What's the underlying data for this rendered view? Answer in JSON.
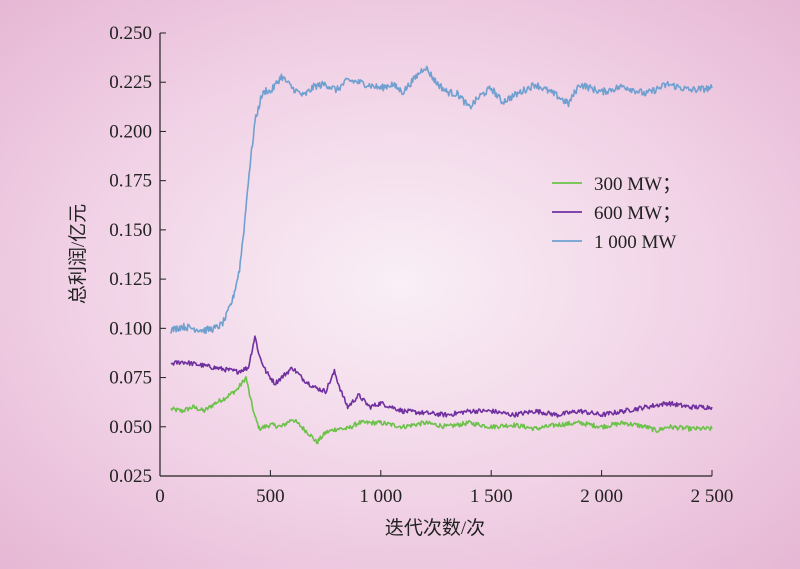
{
  "chart_data": {
    "type": "line",
    "title": "",
    "xlabel": "迭代次数/次",
    "ylabel": "总利润/亿元",
    "xlim": [
      0,
      2500
    ],
    "ylim": [
      0.025,
      0.25
    ],
    "xticks": [
      0,
      500,
      1000,
      1500,
      2000,
      2500
    ],
    "xtick_labels": [
      "0",
      "500",
      "1 000",
      "1 500",
      "2 000",
      "2 500"
    ],
    "yticks": [
      0.025,
      0.05,
      0.075,
      0.1,
      0.125,
      0.15,
      0.175,
      0.2,
      0.225,
      0.25
    ],
    "ytick_labels": [
      "0.025",
      "0.050",
      "0.075",
      "0.100",
      "0.125",
      "0.150",
      "0.175",
      "0.200",
      "0.225",
      "0.250"
    ],
    "grid": false,
    "legend_position": "right",
    "series": [
      {
        "name": "300 MW；",
        "color": "#6cc24a",
        "x": [
          50,
          100,
          150,
          200,
          250,
          300,
          350,
          390,
          410,
          430,
          450,
          500,
          550,
          600,
          650,
          680,
          710,
          750,
          800,
          850,
          900,
          1000,
          1100,
          1200,
          1300,
          1400,
          1500,
          1600,
          1700,
          1800,
          1900,
          2000,
          2100,
          2200,
          2250,
          2300,
          2400,
          2500
        ],
        "y": [
          0.059,
          0.058,
          0.06,
          0.058,
          0.062,
          0.065,
          0.069,
          0.075,
          0.064,
          0.055,
          0.049,
          0.051,
          0.05,
          0.054,
          0.049,
          0.046,
          0.042,
          0.047,
          0.049,
          0.049,
          0.052,
          0.052,
          0.05,
          0.052,
          0.05,
          0.052,
          0.05,
          0.051,
          0.049,
          0.051,
          0.052,
          0.05,
          0.052,
          0.05,
          0.048,
          0.05,
          0.049,
          0.049
        ]
      },
      {
        "name": "600 MW；",
        "color": "#7030a0",
        "x": [
          50,
          100,
          150,
          200,
          250,
          300,
          350,
          400,
          430,
          450,
          480,
          520,
          560,
          600,
          650,
          700,
          750,
          790,
          820,
          850,
          900,
          950,
          1000,
          1100,
          1200,
          1300,
          1400,
          1500,
          1600,
          1700,
          1800,
          1900,
          2000,
          2100,
          2200,
          2300,
          2400,
          2500
        ],
        "y": [
          0.082,
          0.083,
          0.082,
          0.081,
          0.08,
          0.079,
          0.078,
          0.08,
          0.096,
          0.086,
          0.078,
          0.072,
          0.076,
          0.08,
          0.074,
          0.07,
          0.068,
          0.078,
          0.068,
          0.06,
          0.066,
          0.06,
          0.062,
          0.058,
          0.057,
          0.056,
          0.058,
          0.058,
          0.056,
          0.058,
          0.056,
          0.058,
          0.056,
          0.058,
          0.06,
          0.062,
          0.06,
          0.06
        ]
      },
      {
        "name": "1 000 MW",
        "color": "#6fa0d0",
        "x": [
          50,
          100,
          150,
          200,
          250,
          280,
          300,
          330,
          360,
          380,
          400,
          430,
          460,
          480,
          500,
          550,
          600,
          650,
          700,
          750,
          800,
          850,
          900,
          1000,
          1050,
          1100,
          1200,
          1250,
          1300,
          1350,
          1400,
          1450,
          1500,
          1550,
          1600,
          1700,
          1800,
          1850,
          1900,
          2000,
          2100,
          2200,
          2300,
          2400,
          2500
        ],
        "y": [
          0.099,
          0.101,
          0.1,
          0.099,
          0.1,
          0.102,
          0.106,
          0.115,
          0.13,
          0.15,
          0.175,
          0.205,
          0.218,
          0.221,
          0.22,
          0.228,
          0.222,
          0.218,
          0.223,
          0.224,
          0.221,
          0.226,
          0.225,
          0.222,
          0.224,
          0.22,
          0.233,
          0.225,
          0.22,
          0.219,
          0.212,
          0.218,
          0.222,
          0.215,
          0.218,
          0.224,
          0.218,
          0.214,
          0.224,
          0.22,
          0.223,
          0.219,
          0.224,
          0.221,
          0.222
        ]
      }
    ]
  }
}
